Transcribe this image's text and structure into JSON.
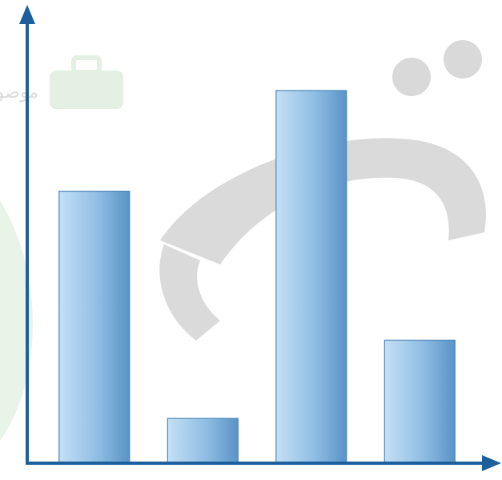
{
  "chart_data": {
    "type": "bar",
    "categories": [
      "",
      "",
      "",
      ""
    ],
    "values": [
      73,
      12,
      100,
      33
    ],
    "title": "",
    "xlabel": "",
    "ylabel": "",
    "ylim": [
      0,
      120
    ],
    "grid": false,
    "legend": "none"
  },
  "colors": {
    "axis": "#1c5f9c",
    "bar_light": "#bfdcf2",
    "bar_dark": "#5a93c6",
    "bar_edge": "#4f87b8",
    "watermark_gray": "#d6d6d6",
    "watermark_green": "#e6f2e6"
  },
  "watermark": {
    "logo_text": "موضوع"
  }
}
